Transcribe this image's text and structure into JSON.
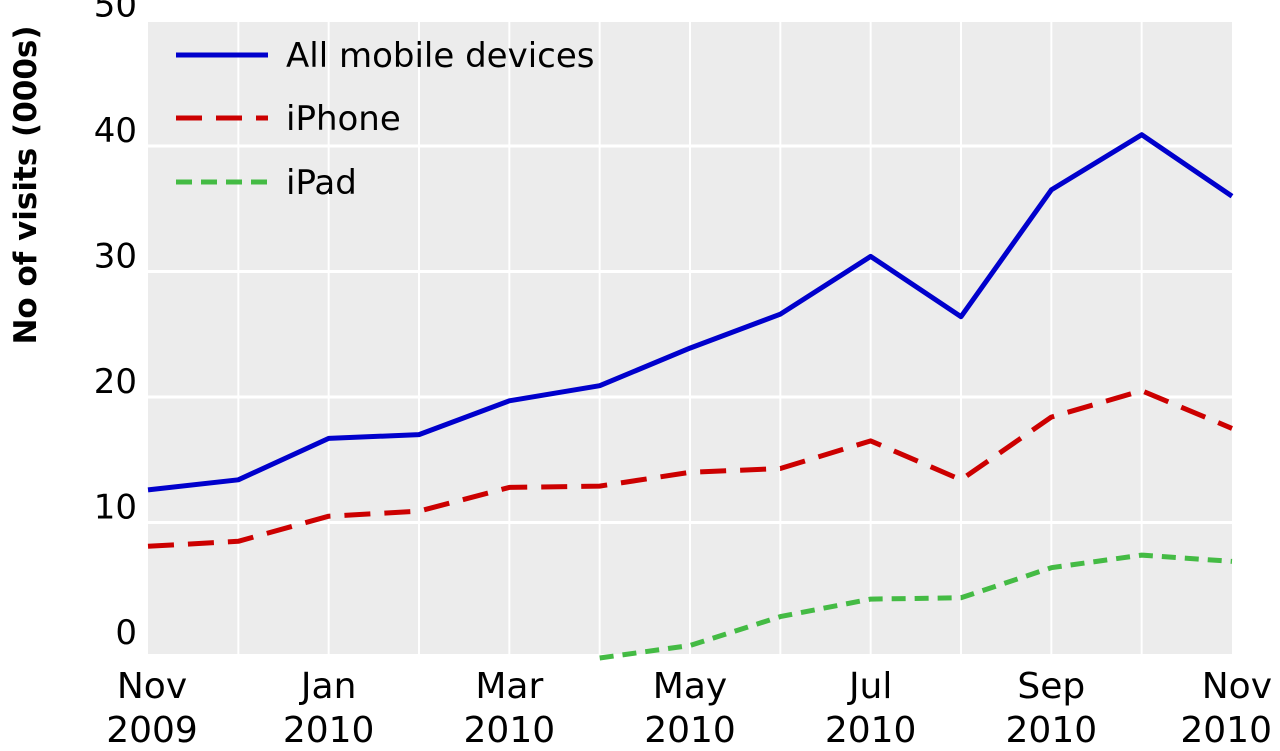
{
  "chart_data": {
    "type": "line",
    "title": "",
    "ylabel": "No of visits (000s)",
    "xlabel": "",
    "ylim": [
      0,
      50
    ],
    "y_ticks": [
      0,
      10,
      20,
      30,
      40,
      50
    ],
    "grid": true,
    "legend_position": "top-left",
    "x": [
      "Nov 2009",
      "Dec 2009",
      "Jan 2010",
      "Feb 2010",
      "Mar 2010",
      "Apr 2010",
      "May 2010",
      "Jun 2010",
      "Jul 2010",
      "Aug 2010",
      "Sep 2010",
      "Oct 2010",
      "Nov 2010"
    ],
    "x_tick_labels": [
      {
        "month": "Nov",
        "year": "2009"
      },
      {
        "month": "Jan",
        "year": "2010"
      },
      {
        "month": "Mar",
        "year": "2010"
      },
      {
        "month": "May",
        "year": "2010"
      },
      {
        "month": "Jul",
        "year": "2010"
      },
      {
        "month": "Sep",
        "year": "2010"
      },
      {
        "month": "Nov",
        "year": "2010"
      }
    ],
    "series": [
      {
        "name": "All mobile devices",
        "color": "#0000cc",
        "style": "solid",
        "values": [
          12.6,
          13.4,
          16.7,
          17.0,
          19.7,
          20.9,
          23.9,
          26.6,
          31.2,
          26.4,
          36.5,
          40.9,
          36.0
        ]
      },
      {
        "name": "iPhone",
        "color": "#cc0000",
        "style": "dashed",
        "values": [
          8.1,
          8.5,
          10.5,
          10.9,
          12.8,
          12.9,
          14.0,
          14.3,
          16.5,
          13.4,
          18.4,
          20.5,
          17.5
        ]
      },
      {
        "name": "iPad",
        "color": "#44bb44",
        "style": "dashed",
        "values": [
          null,
          null,
          null,
          null,
          null,
          -0.8,
          0.2,
          2.5,
          3.9,
          4.0,
          6.4,
          7.4,
          6.9
        ]
      }
    ]
  }
}
